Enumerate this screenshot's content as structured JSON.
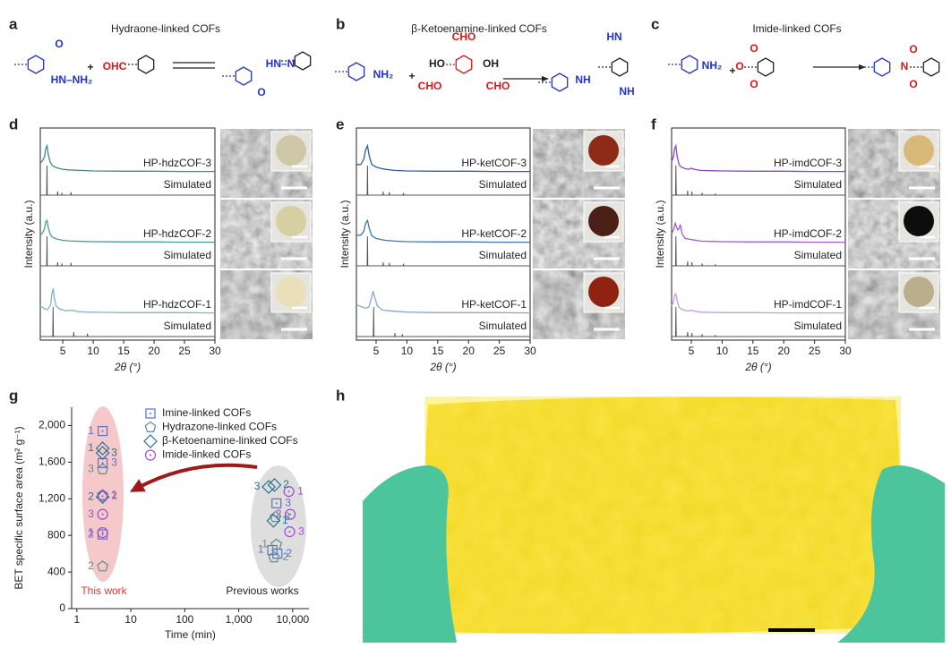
{
  "schemes": [
    {
      "label": "a",
      "title": "Hydraone-linked COFs",
      "atoms": [
        "O",
        "HN–NH₂",
        "+",
        "OHC",
        "O",
        "HN–N"
      ]
    },
    {
      "label": "b",
      "title": "β-Ketoenamine-linked COFs",
      "atoms": [
        "NH₂",
        "+",
        "CHO",
        "HO",
        "OH",
        "CHO",
        "CHO",
        "HN",
        "NH",
        "NH"
      ]
    },
    {
      "label": "c",
      "title": "Imide-linked COFs",
      "atoms": [
        "NH₂",
        "+",
        "O",
        "O",
        "O",
        "N",
        "O",
        "O"
      ]
    }
  ],
  "photo": {
    "label": "h"
  },
  "chart_data": [
    {
      "type": "line",
      "label": "d",
      "xlabel": "2θ (°)",
      "ylabel": "Intensity (a.u.)",
      "xlim": [
        1.3,
        30
      ],
      "xticks": [
        5,
        10,
        15,
        20,
        25,
        30
      ],
      "series": [
        {
          "name": "HP-hdzCOF-3",
          "color": "#3f8a8c",
          "x": [
            1.3,
            1.7,
            2.0,
            2.2,
            2.4,
            2.6,
            2.9,
            3.3,
            4,
            5,
            6,
            8,
            10,
            15,
            20,
            25,
            30
          ],
          "values": [
            0.35,
            0.45,
            0.6,
            0.9,
            1,
            0.7,
            0.4,
            0.25,
            0.18,
            0.12,
            0.1,
            0.08,
            0.06,
            0.05,
            0.05,
            0.04,
            0.04
          ]
        },
        {
          "name": "Simulated",
          "color": "#555555",
          "x": [
            1.3,
            2.35,
            2.4,
            2.45,
            4.1,
            4.15,
            4.2,
            4.8,
            4.85,
            4.9,
            6.3,
            6.35,
            6.4,
            30
          ],
          "values": [
            0,
            0,
            1,
            0,
            0,
            0.12,
            0,
            0,
            0.08,
            0,
            0,
            0.1,
            0,
            0
          ]
        },
        {
          "name": "HP-hdzCOF-2",
          "color": "#4a9aa0",
          "x": [
            1.3,
            1.7,
            2.0,
            2.2,
            2.4,
            2.6,
            2.9,
            3.3,
            4,
            5,
            6,
            8,
            10,
            15,
            20,
            25,
            30
          ],
          "values": [
            0.3,
            0.4,
            0.55,
            0.8,
            0.85,
            0.6,
            0.35,
            0.22,
            0.16,
            0.11,
            0.09,
            0.07,
            0.06,
            0.05,
            0.05,
            0.04,
            0.04
          ]
        },
        {
          "name": "Simulated",
          "color": "#555555",
          "x": [
            1.3,
            2.35,
            2.4,
            2.45,
            4.1,
            4.15,
            4.2,
            4.8,
            4.85,
            4.9,
            6.3,
            6.35,
            6.4,
            30
          ],
          "values": [
            0,
            0,
            1,
            0,
            0,
            0.12,
            0,
            0,
            0.08,
            0,
            0,
            0.1,
            0,
            0
          ]
        },
        {
          "name": "HP-hdzCOF-1",
          "color": "#7fb3c8",
          "x": [
            1.3,
            2,
            2.5,
            3,
            3.2,
            3.4,
            3.6,
            3.9,
            4.5,
            5.5,
            6.6,
            7.5,
            9,
            12,
            15,
            20,
            25,
            30
          ],
          "values": [
            0.3,
            0.2,
            0.16,
            0.35,
            0.75,
            0.95,
            0.6,
            0.3,
            0.18,
            0.12,
            0.14,
            0.09,
            0.07,
            0.06,
            0.05,
            0.05,
            0.05,
            0.04
          ]
        },
        {
          "name": "Simulated",
          "color": "#555555",
          "x": [
            1.3,
            3.35,
            3.4,
            3.45,
            6.75,
            6.8,
            6.85,
            9.0,
            9.05,
            9.1,
            30
          ],
          "values": [
            0,
            0,
            1,
            0,
            0,
            0.15,
            0,
            0,
            0.1,
            0,
            0
          ]
        }
      ]
    },
    {
      "type": "line",
      "label": "e",
      "xlabel": "2θ (°)",
      "ylabel": "Intensity (a.u.)",
      "xlim": [
        1.8,
        30
      ],
      "xticks": [
        5,
        10,
        15,
        20,
        25,
        30
      ],
      "series": [
        {
          "name": "HP-ketCOF-3",
          "color": "#2d5f9a",
          "x": [
            1.8,
            2.5,
            3,
            3.3,
            3.6,
            3.9,
            4.3,
            5,
            5.8,
            6.5,
            8,
            10,
            15,
            20,
            25,
            30
          ],
          "values": [
            0.3,
            0.3,
            0.5,
            0.85,
            1,
            0.6,
            0.3,
            0.2,
            0.15,
            0.12,
            0.08,
            0.06,
            0.05,
            0.05,
            0.04,
            0.04
          ]
        },
        {
          "name": "Simulated",
          "color": "#555555",
          "x": [
            1.8,
            3.55,
            3.6,
            3.65,
            6.1,
            6.15,
            6.2,
            7.1,
            7.15,
            7.2,
            9.4,
            9.45,
            9.5,
            30
          ],
          "values": [
            0,
            0,
            1,
            0,
            0,
            0.12,
            0,
            0,
            0.1,
            0,
            0,
            0.07,
            0,
            0
          ]
        },
        {
          "name": "HP-ketCOF-2",
          "color": "#3f74b5",
          "x": [
            1.8,
            2.5,
            3,
            3.3,
            3.6,
            3.9,
            4.3,
            5,
            5.8,
            6.5,
            8,
            10,
            15,
            20,
            25,
            30
          ],
          "values": [
            0.3,
            0.3,
            0.45,
            0.75,
            0.85,
            0.55,
            0.28,
            0.18,
            0.14,
            0.11,
            0.08,
            0.06,
            0.05,
            0.05,
            0.04,
            0.04
          ]
        },
        {
          "name": "Simulated",
          "color": "#555555",
          "x": [
            1.8,
            3.55,
            3.6,
            3.65,
            6.1,
            6.15,
            6.2,
            7.1,
            7.15,
            7.2,
            9.4,
            9.45,
            9.5,
            30
          ],
          "values": [
            0,
            0,
            1,
            0,
            0,
            0.12,
            0,
            0,
            0.1,
            0,
            0,
            0.07,
            0,
            0
          ]
        },
        {
          "name": "HP-ketCOF-1",
          "color": "#86a8d2",
          "x": [
            1.8,
            2.5,
            3.2,
            3.8,
            4.2,
            4.5,
            4.8,
            5.2,
            6,
            7,
            8,
            10,
            15,
            20,
            25,
            30
          ],
          "values": [
            0.35,
            0.28,
            0.22,
            0.25,
            0.55,
            0.85,
            0.6,
            0.3,
            0.15,
            0.12,
            0.1,
            0.07,
            0.05,
            0.05,
            0.05,
            0.04
          ]
        },
        {
          "name": "Simulated",
          "color": "#555555",
          "x": [
            1.8,
            4.55,
            4.6,
            4.65,
            8.0,
            8.05,
            8.1,
            9.2,
            9.25,
            9.3,
            30
          ],
          "values": [
            0,
            0,
            1,
            0,
            0,
            0.12,
            0,
            0,
            0.08,
            0,
            0
          ]
        }
      ]
    },
    {
      "type": "line",
      "label": "f",
      "xlabel": "2θ (°)",
      "ylabel": "Intensity (a.u.)",
      "xlim": [
        1.8,
        30
      ],
      "xticks": [
        5,
        10,
        15,
        20,
        25,
        30
      ],
      "series": [
        {
          "name": "HP-imdCOF-3",
          "color": "#8e44c8",
          "x": [
            1.8,
            2.1,
            2.3,
            2.5,
            2.7,
            3,
            3.4,
            4,
            4.5,
            5,
            5.5,
            6.5,
            8,
            10,
            15,
            20,
            25,
            30
          ],
          "values": [
            0.4,
            0.6,
            0.9,
            1,
            0.6,
            0.3,
            0.2,
            0.15,
            0.12,
            0.16,
            0.12,
            0.08,
            0.07,
            0.06,
            0.05,
            0.05,
            0.04,
            0.04
          ]
        },
        {
          "name": "Simulated",
          "color": "#555555",
          "x": [
            1.8,
            2.45,
            2.5,
            2.55,
            4.35,
            4.4,
            4.45,
            5.05,
            5.1,
            5.15,
            6.7,
            6.75,
            6.8,
            8.85,
            8.9,
            8.95,
            30
          ],
          "values": [
            0,
            0,
            1,
            0,
            0,
            0.15,
            0,
            0,
            0.12,
            0,
            0,
            0.08,
            0,
            0,
            0.05,
            0,
            0
          ]
        },
        {
          "name": "HP-imdCOF-2",
          "color": "#a35ad6",
          "x": [
            1.8,
            2.1,
            2.4,
            2.6,
            2.8,
            3.0,
            3.2,
            3.5,
            4,
            5,
            5.5,
            6.5,
            8,
            10,
            15,
            20,
            25,
            30
          ],
          "values": [
            0.35,
            0.5,
            0.75,
            0.6,
            0.5,
            0.55,
            0.7,
            0.35,
            0.18,
            0.14,
            0.12,
            0.08,
            0.07,
            0.06,
            0.05,
            0.05,
            0.04,
            0.04
          ]
        },
        {
          "name": "Simulated",
          "color": "#555555",
          "x": [
            1.8,
            2.45,
            2.5,
            2.55,
            4.35,
            4.4,
            4.45,
            5.05,
            5.1,
            5.15,
            6.7,
            6.75,
            6.8,
            8.85,
            8.9,
            8.95,
            30
          ],
          "values": [
            0,
            0,
            1,
            0,
            0,
            0.15,
            0,
            0,
            0.12,
            0,
            0,
            0.08,
            0,
            0,
            0.05,
            0,
            0
          ]
        },
        {
          "name": "HP-imdCOF-1",
          "color": "#c59be6",
          "x": [
            1.8,
            2.1,
            2.3,
            2.5,
            2.7,
            3,
            3.4,
            4,
            4.5,
            5,
            5.5,
            6.5,
            8,
            10,
            15,
            20,
            25,
            30
          ],
          "values": [
            0.3,
            0.45,
            0.7,
            0.75,
            0.5,
            0.25,
            0.18,
            0.13,
            0.11,
            0.14,
            0.1,
            0.07,
            0.06,
            0.05,
            0.05,
            0.04,
            0.04,
            0.04
          ]
        },
        {
          "name": "Simulated",
          "color": "#555555",
          "x": [
            1.8,
            2.45,
            2.5,
            2.55,
            4.35,
            4.4,
            4.45,
            5.05,
            5.1,
            5.15,
            6.7,
            6.75,
            6.8,
            8.85,
            8.9,
            8.95,
            30
          ],
          "values": [
            0,
            0,
            1,
            0,
            0,
            0.15,
            0,
            0,
            0.12,
            0,
            0,
            0.08,
            0,
            0,
            0.05,
            0,
            0
          ]
        }
      ]
    },
    {
      "type": "scatter",
      "label": "g",
      "xlabel": "Time (min)",
      "ylabel": "BET specific surface area (m² g⁻¹)",
      "xscale": "log",
      "xlim": [
        0.8,
        20000
      ],
      "xticks": [
        1,
        10,
        100,
        {
          "value": 1000,
          "label": "1,000"
        },
        {
          "value": 10000,
          "label": "10,000"
        }
      ],
      "ylim": [
        0,
        2200
      ],
      "yticks": [
        0,
        400,
        800,
        {
          "value": 1200,
          "label": "1,200"
        },
        {
          "value": 1600,
          "label": "1,600"
        },
        {
          "value": 2000,
          "label": "2,000"
        }
      ],
      "annotations": [
        "This work",
        "Previous works"
      ],
      "series": [
        {
          "name": "Imine-linked COFs",
          "color": "#5a6fd6",
          "marker": "square",
          "x": [
            3,
            3,
            3,
            5000,
            4200,
            5200
          ],
          "values": [
            1940,
            1590,
            810,
            1150,
            640,
            600
          ],
          "point_labels": [
            "1",
            "3",
            "2",
            "3",
            "1",
            "2"
          ]
        },
        {
          "name": "Hydrazone-linked COFs",
          "color": "#5d8f8f",
          "marker": "pentagon",
          "x": [
            3,
            3,
            3,
            4800,
            5000,
            4500
          ],
          "values": [
            1520,
            1240,
            460,
            1000,
            700,
            560
          ],
          "point_labels": [
            "3",
            "1",
            "2",
            "3",
            "1",
            "2"
          ]
        },
        {
          "name": "β-Ketoenamine-linked COFs",
          "color": "#2a6f8f",
          "marker": "diamond",
          "x": [
            3,
            3,
            3,
            4600,
            3600,
            4400
          ],
          "values": [
            1750,
            1700,
            1220,
            1350,
            1330,
            960
          ],
          "point_labels": [
            "1",
            "3",
            "2",
            "2",
            "3",
            "1"
          ]
        },
        {
          "name": "Imide-linked COFs",
          "color": "#a24ad8",
          "marker": "circle",
          "x": [
            3,
            3,
            3,
            8500,
            9000,
            8800
          ],
          "values": [
            1030,
            1230,
            830,
            1280,
            1030,
            840
          ],
          "point_labels": [
            "3",
            "2",
            "1",
            "1",
            "2",
            "3"
          ]
        }
      ]
    }
  ]
}
